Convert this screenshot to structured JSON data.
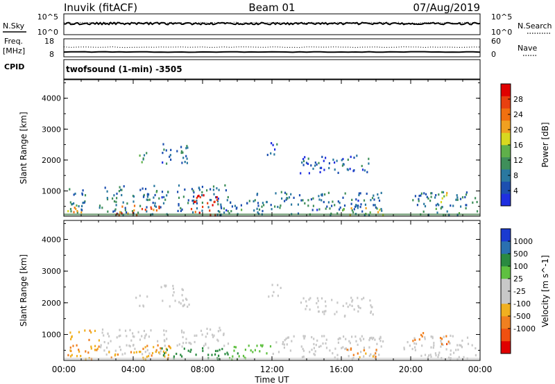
{
  "header": {
    "station": "Inuvik (fitACF)",
    "beam": "Beam 01",
    "date": "07/Aug/2019"
  },
  "noise_panel": {
    "left_label": "N.Sky",
    "left_ticks": [
      "10^5",
      "10^0"
    ],
    "right_label": "N.Search",
    "right_ticks": [
      "10^5",
      "10^0"
    ]
  },
  "freq_panel": {
    "left_label_1": "Freq.",
    "left_label_2": "[MHz]",
    "left_ticks": [
      "18",
      "8"
    ],
    "right_label": "Nave",
    "right_ticks": [
      "60",
      "0"
    ],
    "cpid_label": "CPID",
    "cpid_value": "twofsound (1-min) -3505"
  },
  "colors": {
    "power": [
      "#1f2fe0",
      "#1c4fb0",
      "#2a78a0",
      "#3f8f5a",
      "#5fb04a",
      "#d8d820",
      "#f0a020",
      "#f07010",
      "#e84010",
      "#e00000"
    ],
    "velocity": [
      "#e00000",
      "#f05010",
      "#f08020",
      "#f0b020",
      "#c8c8c8",
      "#c8c8c8",
      "#5fc040",
      "#2a8a40",
      "#2a70b0",
      "#1a3ad0"
    ]
  },
  "chart_data": [
    {
      "type": "heatmap",
      "name": "power",
      "ylabel": "Slant Range [km]",
      "yticks": [
        "1000",
        "2000",
        "3000",
        "4000"
      ],
      "ylim": [
        180,
        4600
      ],
      "xlim": [
        0,
        24
      ],
      "colorbar_label": "Power [dB]",
      "colorbar_ticks": [
        "4",
        "8",
        "12",
        "16",
        "20",
        "24",
        "28"
      ],
      "colorbar_range": [
        0,
        32
      ],
      "regions": [
        {
          "t0": 0.1,
          "t1": 1.2,
          "r0": 250,
          "r1": 1200,
          "v": 8
        },
        {
          "t0": 0.2,
          "t1": 1.0,
          "r0": 250,
          "r1": 700,
          "v": 20
        },
        {
          "t0": 2.0,
          "t1": 6.0,
          "r0": 250,
          "r1": 1200,
          "v": 8
        },
        {
          "t0": 3.0,
          "t1": 5.5,
          "r0": 250,
          "r1": 600,
          "v": 24
        },
        {
          "t0": 6.5,
          "t1": 9.5,
          "r0": 250,
          "r1": 1250,
          "v": 8
        },
        {
          "t0": 7.3,
          "t1": 8.8,
          "r0": 250,
          "r1": 900,
          "v": 28
        },
        {
          "t0": 4.1,
          "t1": 4.8,
          "r0": 1900,
          "r1": 2300,
          "v": 10
        },
        {
          "t0": 5.5,
          "t1": 7.2,
          "r0": 1900,
          "r1": 2600,
          "v": 6
        },
        {
          "t0": 11.7,
          "t1": 12.5,
          "r0": 2200,
          "r1": 2650,
          "v": 6
        },
        {
          "t0": 13.6,
          "t1": 17.8,
          "r0": 1600,
          "r1": 2200,
          "v": 6
        },
        {
          "t0": 10.5,
          "t1": 18.5,
          "r0": 250,
          "r1": 1000,
          "v": 8
        },
        {
          "t0": 16.0,
          "t1": 18.5,
          "r0": 250,
          "r1": 500,
          "v": 18
        },
        {
          "t0": 20.0,
          "t1": 23.8,
          "r0": 250,
          "r1": 1000,
          "v": 8
        },
        {
          "t0": 21.3,
          "t1": 22.2,
          "r0": 650,
          "r1": 1000,
          "v": 16
        },
        {
          "t0": 9.0,
          "t1": 10.5,
          "r0": 250,
          "r1": 700,
          "v": 8
        }
      ]
    },
    {
      "type": "heatmap",
      "name": "velocity",
      "ylabel": "Slant Range [km]",
      "yticks": [
        "1000",
        "2000",
        "3000",
        "4000"
      ],
      "ylim": [
        180,
        4600
      ],
      "xlim": [
        0,
        24
      ],
      "xlabel": "Time UT",
      "xticks": [
        "00:00",
        "04:00",
        "08:00",
        "12:00",
        "16:00",
        "20:00",
        "00:00"
      ],
      "colorbar_label": "Velocity [m s^-1]",
      "colorbar_ticks": [
        "1000",
        "500",
        "100",
        "25",
        "-25",
        "-100",
        "-500",
        "-1000"
      ],
      "regions": [
        {
          "t0": 0.1,
          "t1": 2.0,
          "r0": 250,
          "r1": 1200,
          "v": -100
        },
        {
          "t0": 2.0,
          "t1": 6.0,
          "r0": 400,
          "r1": 1200,
          "v": 0
        },
        {
          "t0": 2.5,
          "t1": 6.5,
          "r0": 250,
          "r1": 700,
          "v": -80
        },
        {
          "t0": 6.5,
          "t1": 9.5,
          "r0": 600,
          "r1": 1250,
          "v": 0
        },
        {
          "t0": 5.5,
          "t1": 10.0,
          "r0": 250,
          "r1": 600,
          "v": 200
        },
        {
          "t0": 9.5,
          "t1": 12.0,
          "r0": 250,
          "r1": 700,
          "v": 60
        },
        {
          "t0": 4.1,
          "t1": 4.8,
          "r0": 1900,
          "r1": 2300,
          "v": 0
        },
        {
          "t0": 5.5,
          "t1": 7.2,
          "r0": 1900,
          "r1": 2600,
          "v": 0
        },
        {
          "t0": 11.7,
          "t1": 12.5,
          "r0": 2200,
          "r1": 2650,
          "v": 0
        },
        {
          "t0": 13.6,
          "t1": 17.8,
          "r0": 1600,
          "r1": 2200,
          "v": 0
        },
        {
          "t0": 12.0,
          "t1": 18.5,
          "r0": 250,
          "r1": 1000,
          "v": 0
        },
        {
          "t0": 16.0,
          "t1": 18.0,
          "r0": 250,
          "r1": 600,
          "v": -100
        },
        {
          "t0": 19.5,
          "t1": 23.8,
          "r0": 250,
          "r1": 1000,
          "v": 0
        },
        {
          "t0": 21.4,
          "t1": 22.2,
          "r0": 600,
          "r1": 1000,
          "v": -400
        },
        {
          "t0": 20.0,
          "t1": 21.0,
          "r0": 800,
          "r1": 1100,
          "v": -150
        }
      ]
    }
  ]
}
